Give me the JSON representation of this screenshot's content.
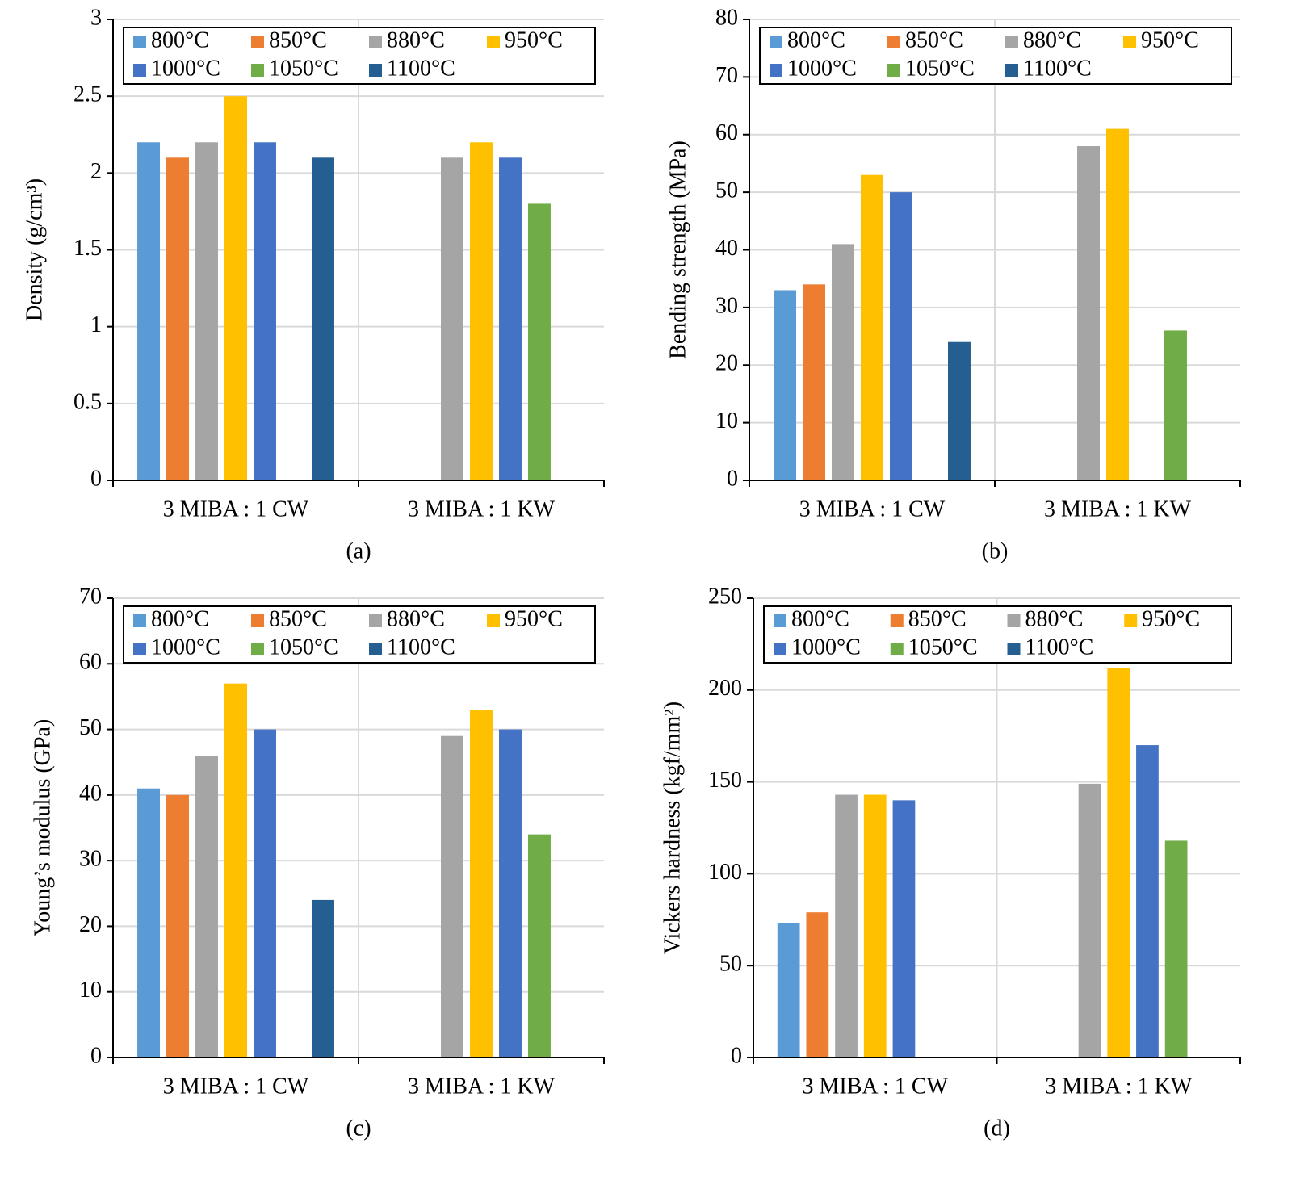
{
  "chart_data": [
    {
      "type": "bar",
      "y_label": "Density (g/cm³)",
      "caption": "(a)",
      "categories": [
        "3 MIBA : 1 CW",
        "3 MIBA : 1 KW"
      ],
      "ylim": [
        0,
        3
      ],
      "yticks": [
        0,
        0.5,
        1,
        1.5,
        2,
        2.5,
        3
      ],
      "grid": true,
      "legend": "top",
      "series": [
        {
          "name": "800°C",
          "color": "#5b9bd5",
          "values": [
            2.2,
            null
          ]
        },
        {
          "name": "850°C",
          "color": "#ed7d31",
          "values": [
            2.1,
            null
          ]
        },
        {
          "name": "880°C",
          "color": "#a5a5a5",
          "values": [
            2.2,
            2.1
          ]
        },
        {
          "name": "950°C",
          "color": "#ffc000",
          "values": [
            2.5,
            2.2
          ]
        },
        {
          "name": "1000°C",
          "color": "#4472c4",
          "values": [
            2.2,
            2.1
          ]
        },
        {
          "name": "1050°C",
          "color": "#70ad47",
          "values": [
            null,
            1.8
          ]
        },
        {
          "name": "1100°C",
          "color": "#255e91",
          "values": [
            2.1,
            null
          ]
        }
      ]
    },
    {
      "type": "bar",
      "y_label": "Bending strength (MPa)",
      "caption": "(b)",
      "categories": [
        "3 MIBA : 1 CW",
        "3 MIBA : 1 KW"
      ],
      "ylim": [
        0,
        80
      ],
      "yticks": [
        0,
        10,
        20,
        30,
        40,
        50,
        60,
        70,
        80
      ],
      "grid": true,
      "legend": "top",
      "series": [
        {
          "name": "800°C",
          "color": "#5b9bd5",
          "values": [
            33,
            null
          ]
        },
        {
          "name": "850°C",
          "color": "#ed7d31",
          "values": [
            34,
            null
          ]
        },
        {
          "name": "880°C",
          "color": "#a5a5a5",
          "values": [
            41,
            58
          ]
        },
        {
          "name": "950°C",
          "color": "#ffc000",
          "values": [
            53,
            61
          ]
        },
        {
          "name": "1000°C",
          "color": "#4472c4",
          "values": [
            50,
            null
          ]
        },
        {
          "name": "1050°C",
          "color": "#70ad47",
          "values": [
            null,
            26
          ]
        },
        {
          "name": "1100°C",
          "color": "#255e91",
          "values": [
            24,
            null
          ]
        }
      ]
    },
    {
      "type": "bar",
      "y_label": "Young’s modulus (GPa)",
      "caption": "(c)",
      "categories": [
        "3 MIBA : 1 CW",
        "3 MIBA : 1 KW"
      ],
      "ylim": [
        0,
        70
      ],
      "yticks": [
        0,
        10,
        20,
        30,
        40,
        50,
        60,
        70
      ],
      "grid": true,
      "legend": "top",
      "series": [
        {
          "name": "800°C",
          "color": "#5b9bd5",
          "values": [
            41,
            null
          ]
        },
        {
          "name": "850°C",
          "color": "#ed7d31",
          "values": [
            40,
            null
          ]
        },
        {
          "name": "880°C",
          "color": "#a5a5a5",
          "values": [
            46,
            49
          ]
        },
        {
          "name": "950°C",
          "color": "#ffc000",
          "values": [
            57,
            53
          ]
        },
        {
          "name": "1000°C",
          "color": "#4472c4",
          "values": [
            50,
            50
          ]
        },
        {
          "name": "1050°C",
          "color": "#70ad47",
          "values": [
            null,
            34
          ]
        },
        {
          "name": "1100°C",
          "color": "#255e91",
          "values": [
            24,
            null
          ]
        }
      ]
    },
    {
      "type": "bar",
      "y_label": "Vickers hardness (kgf/mm²)",
      "caption": "(d)",
      "categories": [
        "3 MIBA : 1 CW",
        "3 MIBA : 1 KW"
      ],
      "ylim": [
        0,
        250
      ],
      "yticks": [
        0,
        50,
        100,
        150,
        200,
        250
      ],
      "grid": true,
      "legend": "top",
      "series": [
        {
          "name": "800°C",
          "color": "#5b9bd5",
          "values": [
            73,
            null
          ]
        },
        {
          "name": "850°C",
          "color": "#ed7d31",
          "values": [
            79,
            null
          ]
        },
        {
          "name": "880°C",
          "color": "#a5a5a5",
          "values": [
            143,
            149
          ]
        },
        {
          "name": "950°C",
          "color": "#ffc000",
          "values": [
            143,
            212
          ]
        },
        {
          "name": "1000°C",
          "color": "#4472c4",
          "values": [
            140,
            170
          ]
        },
        {
          "name": "1050°C",
          "color": "#70ad47",
          "values": [
            null,
            118
          ]
        },
        {
          "name": "1100°C",
          "color": "#255e91",
          "values": [
            null,
            null
          ]
        }
      ]
    }
  ]
}
